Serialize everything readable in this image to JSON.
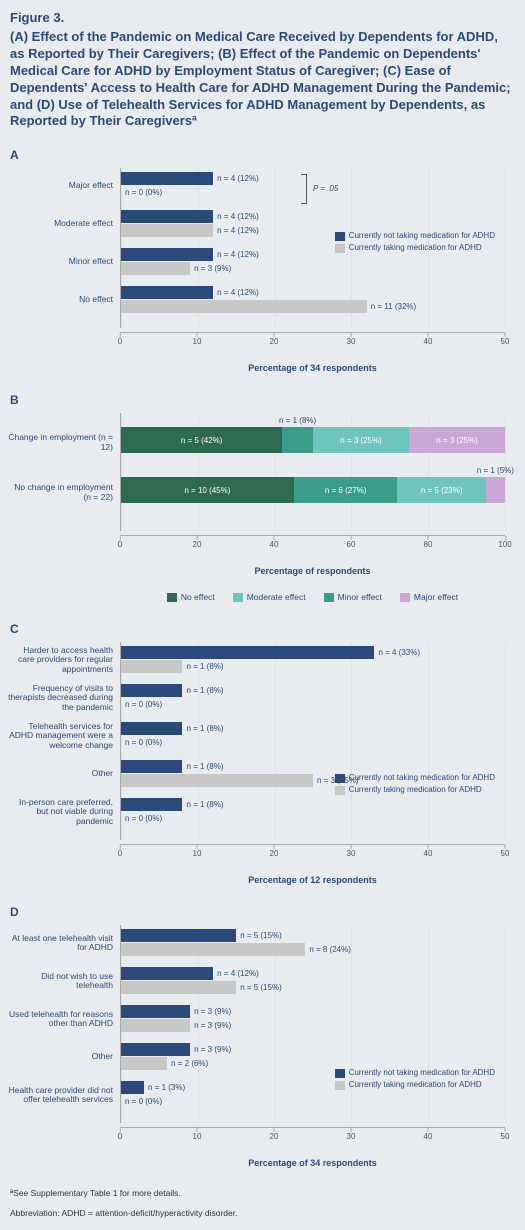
{
  "figure_label": "Figure 3.",
  "figure_title": "(A) Effect of the Pandemic on Medical Care Received by Dependents for ADHD, as Reported by Their Caregivers; (B) Effect of the Pandemic on Dependents' Medical Care for ADHD by Employment Status of Caregiver; (C) Ease of Dependents' Access to Health Care for ADHD Management During the Pandemic; and (D) Use of Telehealth Services for ADHD Management by Dependents, as Reported by Their Caregiversª",
  "colors": {
    "not_taking": "#2b4a7a",
    "taking": "#c8c8c8",
    "no_effect": "#2d6a51",
    "minor_effect": "#3a9d8a",
    "moderate_effect": "#6fc4bb",
    "major_effect": "#c9a8d8",
    "grid": "#e0e0e0",
    "text": "#2b4a7a"
  },
  "axis50": {
    "max": 50,
    "ticks": [
      0,
      10,
      20,
      30,
      40,
      50
    ]
  },
  "axis100": {
    "max": 100,
    "ticks": [
      0,
      20,
      40,
      60,
      80,
      100
    ]
  },
  "legend_two": [
    {
      "label": "Currently not taking medication for ADHD",
      "color": "#2b4a7a"
    },
    {
      "label": "Currently taking medication for ADHD",
      "color": "#c8c8c8"
    }
  ],
  "panelA": {
    "letter": "A",
    "x_label": "Percentage of 34 respondents",
    "p_annotation": "P = .05",
    "rows": [
      {
        "label": "Major effect",
        "bars": [
          {
            "pct": 12,
            "text": "n = 4 (12%)",
            "color": "#2b4a7a"
          },
          {
            "pct": 0,
            "text": "n = 0 (0%)",
            "color": "#c8c8c8"
          }
        ]
      },
      {
        "label": "Moderate effect",
        "bars": [
          {
            "pct": 12,
            "text": "n = 4 (12%)",
            "color": "#2b4a7a"
          },
          {
            "pct": 12,
            "text": "n = 4 (12%)",
            "color": "#c8c8c8"
          }
        ]
      },
      {
        "label": "Minor effect",
        "bars": [
          {
            "pct": 12,
            "text": "n = 4 (12%)",
            "color": "#2b4a7a"
          },
          {
            "pct": 9,
            "text": "n = 3 (9%)",
            "color": "#c8c8c8"
          }
        ]
      },
      {
        "label": "No effect",
        "bars": [
          {
            "pct": 12,
            "text": "n = 4 (12%)",
            "color": "#2b4a7a"
          },
          {
            "pct": 32,
            "text": "n = 11 (32%)",
            "color": "#c8c8c8"
          }
        ]
      }
    ]
  },
  "panelB": {
    "letter": "B",
    "x_label": "Percentage of respondents",
    "legend": [
      {
        "label": "No effect",
        "color": "#2d6a51"
      },
      {
        "label": "Moderate effect",
        "color": "#6fc4bb"
      },
      {
        "label": "Minor effect",
        "color": "#3a9d8a"
      },
      {
        "label": "Major effect",
        "color": "#c9a8d8"
      }
    ],
    "rows": [
      {
        "label": "Change in employment (n = 12)",
        "segs": [
          {
            "pct": 42,
            "text": "n = 5 (42%)",
            "color": "#2d6a51"
          },
          {
            "pct": 8,
            "text": "",
            "top_text": "n = 1 (8%)",
            "color": "#3a9d8a"
          },
          {
            "pct": 25,
            "text": "n = 3 (25%)",
            "color": "#6fc4bb"
          },
          {
            "pct": 25,
            "text": "n = 3 (25%)",
            "color": "#c9a8d8"
          }
        ]
      },
      {
        "label": "No change in employment (n = 22)",
        "segs": [
          {
            "pct": 45,
            "text": "n = 10 (45%)",
            "color": "#2d6a51"
          },
          {
            "pct": 27,
            "text": "n = 6 (27%)",
            "color": "#3a9d8a"
          },
          {
            "pct": 23,
            "text": "n = 5 (23%)",
            "color": "#6fc4bb"
          },
          {
            "pct": 5,
            "text": "",
            "top_text": "n = 1 (5%)",
            "color": "#c9a8d8"
          }
        ]
      }
    ]
  },
  "panelC": {
    "letter": "C",
    "x_label": "Percentage of 12 respondents",
    "rows": [
      {
        "label": "Harder to access health care providers for regular appointments",
        "bars": [
          {
            "pct": 33,
            "text": "n = 4 (33%)",
            "color": "#2b4a7a"
          },
          {
            "pct": 8,
            "text": "n = 1 (8%)",
            "color": "#c8c8c8"
          }
        ]
      },
      {
        "label": "Frequency of visits to therapists decreased during the pandemic",
        "bars": [
          {
            "pct": 8,
            "text": "n = 1 (8%)",
            "color": "#2b4a7a"
          },
          {
            "pct": 0,
            "text": "n = 0 (0%)",
            "color": "#c8c8c8"
          }
        ]
      },
      {
        "label": "Telehealth services for ADHD management were a welcome change",
        "bars": [
          {
            "pct": 8,
            "text": "n = 1 (8%)",
            "color": "#2b4a7a"
          },
          {
            "pct": 0,
            "text": "n = 0 (0%)",
            "color": "#c8c8c8"
          }
        ]
      },
      {
        "label": "Other",
        "bars": [
          {
            "pct": 8,
            "text": "n = 1 (8%)",
            "color": "#2b4a7a"
          },
          {
            "pct": 25,
            "text": "n = 3 (25%)",
            "color": "#c8c8c8"
          }
        ]
      },
      {
        "label": "In-person care preferred, but not viable during pandemic",
        "bars": [
          {
            "pct": 8,
            "text": "n = 1 (8%)",
            "color": "#2b4a7a"
          },
          {
            "pct": 0,
            "text": "n = 0 (0%)",
            "color": "#c8c8c8"
          }
        ]
      }
    ]
  },
  "panelD": {
    "letter": "D",
    "x_label": "Percentage of 34 respondents",
    "rows": [
      {
        "label": "At least one telehealth visit for ADHD",
        "bars": [
          {
            "pct": 15,
            "text": "n = 5 (15%)",
            "color": "#2b4a7a"
          },
          {
            "pct": 24,
            "text": "n = 8 (24%)",
            "color": "#c8c8c8"
          }
        ]
      },
      {
        "label": "Did not wish to use telehealth",
        "bars": [
          {
            "pct": 12,
            "text": "n = 4 (12%)",
            "color": "#2b4a7a"
          },
          {
            "pct": 15,
            "text": "n = 5 (15%)",
            "color": "#c8c8c8"
          }
        ]
      },
      {
        "label": "Used telehealth for reasons other than ADHD",
        "bars": [
          {
            "pct": 9,
            "text": "n = 3 (9%)",
            "color": "#2b4a7a"
          },
          {
            "pct": 9,
            "text": "n = 3 (9%)",
            "color": "#c8c8c8"
          }
        ]
      },
      {
        "label": "Other",
        "bars": [
          {
            "pct": 9,
            "text": "n = 3 (9%)",
            "color": "#2b4a7a"
          },
          {
            "pct": 6,
            "text": "n = 2 (6%)",
            "color": "#c8c8c8"
          }
        ]
      },
      {
        "label": "Health care provider did not offer telehealth services",
        "bars": [
          {
            "pct": 3,
            "text": "n = 1 (3%)",
            "color": "#2b4a7a"
          },
          {
            "pct": 0,
            "text": "n = 0 (0%)",
            "color": "#c8c8c8"
          }
        ]
      }
    ]
  },
  "footnote1": "ªSee Supplementary Table 1 for more details.",
  "footnote2": "Abbreviation: ADHD = attention-deficit/hyperactivity disorder."
}
